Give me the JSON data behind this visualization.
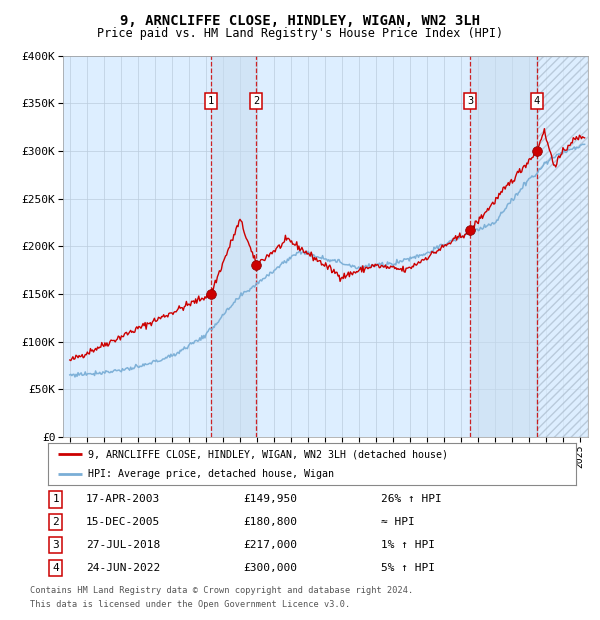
{
  "title": "9, ARNCLIFFE CLOSE, HINDLEY, WIGAN, WN2 3LH",
  "subtitle": "Price paid vs. HM Land Registry's House Price Index (HPI)",
  "ylim": [
    0,
    400000
  ],
  "yticks": [
    0,
    50000,
    100000,
    150000,
    200000,
    250000,
    300000,
    350000,
    400000
  ],
  "ytick_labels": [
    "£0",
    "£50K",
    "£100K",
    "£150K",
    "£200K",
    "£250K",
    "£300K",
    "£350K",
    "£400K"
  ],
  "xlim_start": 1994.6,
  "xlim_end": 2025.5,
  "xticks": [
    1995,
    1996,
    1997,
    1998,
    1999,
    2000,
    2001,
    2002,
    2003,
    2004,
    2005,
    2006,
    2007,
    2008,
    2009,
    2010,
    2011,
    2012,
    2013,
    2014,
    2015,
    2016,
    2017,
    2018,
    2019,
    2020,
    2021,
    2022,
    2023,
    2024,
    2025
  ],
  "sale_points": [
    {
      "num": 1,
      "date": "17-APR-2003",
      "year": 2003.29,
      "price": 149950,
      "hpi_pct": "26% ↑ HPI"
    },
    {
      "num": 2,
      "date": "15-DEC-2005",
      "year": 2005.96,
      "price": 180800,
      "hpi_pct": "≈ HPI"
    },
    {
      "num": 3,
      "date": "27-JUL-2018",
      "year": 2018.57,
      "price": 217000,
      "hpi_pct": "1% ↑ HPI"
    },
    {
      "num": 4,
      "date": "24-JUN-2022",
      "year": 2022.48,
      "price": 300000,
      "hpi_pct": "5% ↑ HPI"
    }
  ],
  "line1_color": "#cc0000",
  "line2_color": "#7aaed6",
  "dot_color": "#cc0000",
  "bg_color": "#ddeeff",
  "grid_color": "#bbccdd",
  "dashed_line_color": "#cc0000",
  "legend1_label": "9, ARNCLIFFE CLOSE, HINDLEY, WIGAN, WN2 3LH (detached house)",
  "legend2_label": "HPI: Average price, detached house, Wigan",
  "footer1": "Contains HM Land Registry data © Crown copyright and database right 2024.",
  "footer2": "This data is licensed under the Open Government Licence v3.0.",
  "title_fontsize": 10,
  "subtitle_fontsize": 8.5
}
